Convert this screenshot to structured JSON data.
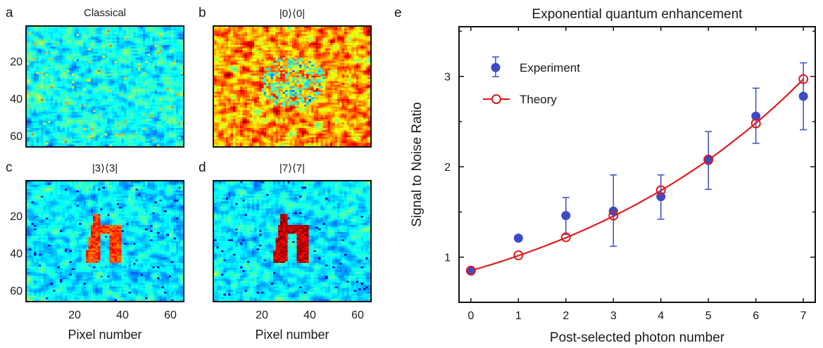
{
  "heatmaps": [
    {
      "letter": "a",
      "title": "Classical",
      "mode": "classical"
    },
    {
      "letter": "b",
      "title": "|0⟩⟨0|",
      "mode": "hot"
    },
    {
      "letter": "c",
      "title": "|3⟩⟨3|",
      "mode": "signal3"
    },
    {
      "letter": "d",
      "title": "|7⟩⟨7|",
      "mode": "signal7"
    }
  ],
  "heatmap_axes": {
    "yticks": [
      "20",
      "40",
      "60"
    ],
    "xticks": [
      "20",
      "40",
      "60"
    ],
    "xlabel": "Pixel number"
  },
  "chart_data": {
    "letter": "e",
    "type": "scatter",
    "title": "Exponential quantum enhancement",
    "xlabel": "Post-selected photon number",
    "ylabel": "Signal to Noise Ratio",
    "xlim": [
      -0.25,
      7.25
    ],
    "ylim": [
      0.5,
      3.55
    ],
    "xticks": [
      0,
      1,
      2,
      3,
      4,
      5,
      6,
      7
    ],
    "yticks": [
      1,
      2,
      3
    ],
    "legend_position": "top-left",
    "series": [
      {
        "name": "Experiment",
        "marker": "filled-circle",
        "color": "#3b4bc8",
        "x": [
          0,
          1,
          2,
          3,
          4,
          5,
          6,
          7
        ],
        "y": [
          0.85,
          1.21,
          1.46,
          1.51,
          1.67,
          2.07,
          2.56,
          2.78
        ],
        "err_low": [
          null,
          null,
          1.25,
          1.12,
          1.42,
          1.75,
          2.26,
          2.41
        ],
        "err_high": [
          null,
          null,
          1.66,
          1.91,
          1.91,
          2.39,
          2.87,
          3.15
        ]
      },
      {
        "name": "Theory",
        "marker": "open-circle-line",
        "color": "#e01b1b",
        "x": [
          0,
          1,
          2,
          3,
          4,
          5,
          6,
          7
        ],
        "y": [
          0.85,
          1.02,
          1.22,
          1.46,
          1.74,
          2.08,
          2.48,
          2.97
        ]
      }
    ]
  }
}
